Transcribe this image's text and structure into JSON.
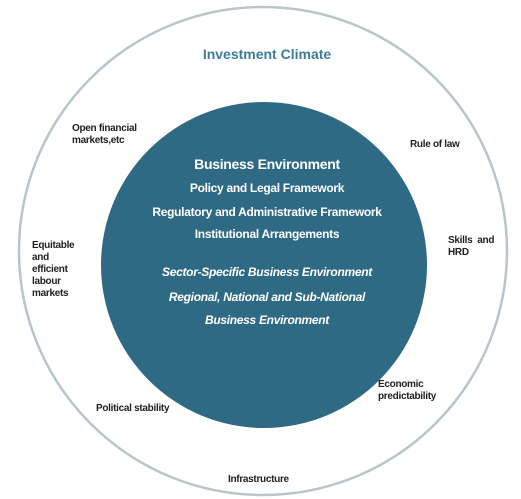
{
  "title": "Investment Climate",
  "core": {
    "heading": "Business Environment",
    "items": [
      "Policy and Legal Framework",
      "Regulatory and Administrative Framework",
      "Institutional Arrangements"
    ],
    "levels": [
      "Sector-Specific Business Environment",
      "Regional, National and Sub-National",
      "Business Environment"
    ]
  },
  "factors": [
    {
      "lines": [
        "Open financial",
        "markets,etc"
      ]
    },
    {
      "lines": [
        "Rule of law"
      ]
    },
    {
      "lines": [
        "Skills  and",
        "HRD"
      ]
    },
    {
      "lines": [
        "Equitable",
        "and",
        "efficient",
        "labour",
        "markets"
      ]
    },
    {
      "lines": [
        "Economic",
        "predictability"
      ]
    },
    {
      "lines": [
        "Political stability"
      ]
    },
    {
      "lines": [
        "Infrastructure"
      ]
    }
  ]
}
